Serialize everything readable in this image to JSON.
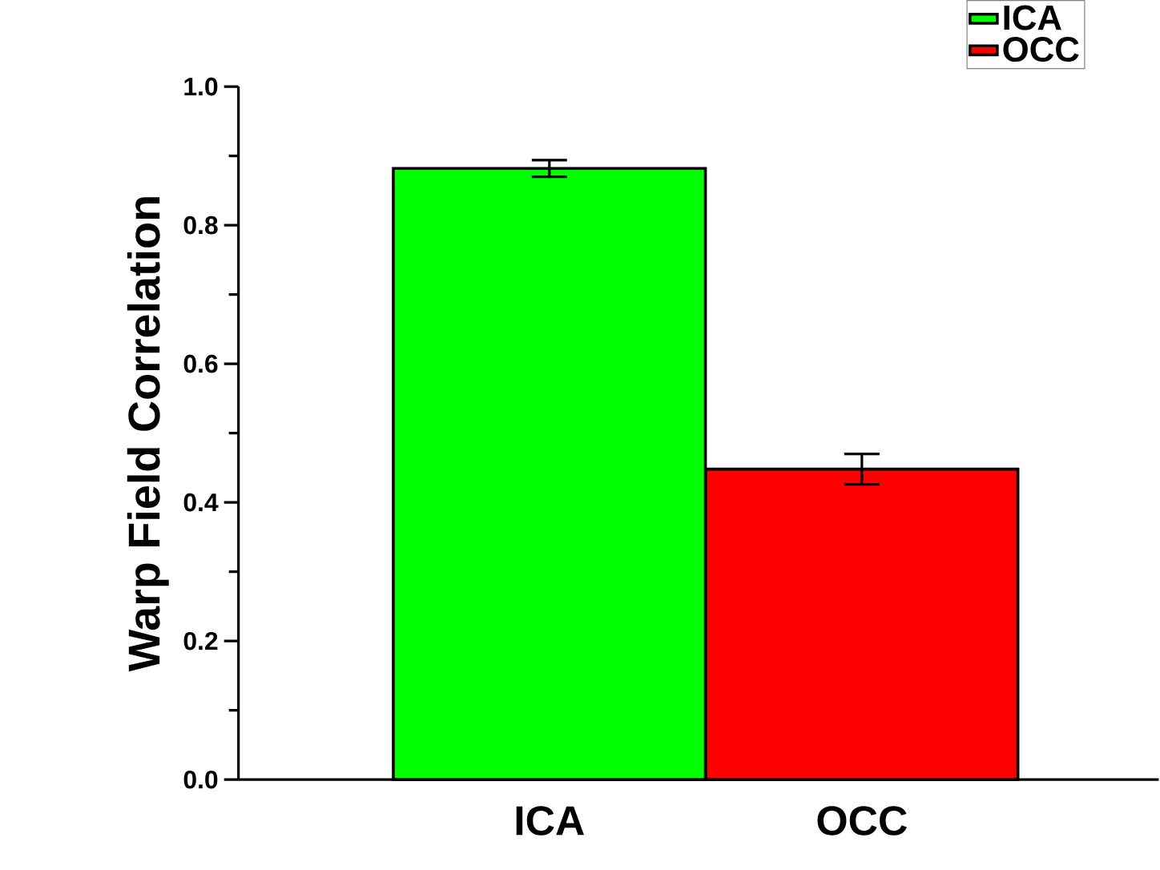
{
  "chart_data": {
    "type": "bar",
    "ylabel": "Warp Field Correlation",
    "categories": [
      "ICA",
      "OCC"
    ],
    "series": [
      {
        "name": "ICA",
        "color": "#00ff00",
        "values": [
          0.882,
          null
        ],
        "errors": [
          0.012,
          null
        ]
      },
      {
        "name": "OCC",
        "color": "#ff0000",
        "values": [
          null,
          0.448
        ],
        "errors": [
          null,
          0.022
        ]
      }
    ],
    "ylim": [
      0,
      1.0
    ],
    "yticks": [
      {
        "value": 0,
        "label": "0.0"
      },
      {
        "value": 0.1,
        "label": null
      },
      0.2,
      {
        "value": 0.3,
        "label": null
      },
      0.4,
      {
        "value": 0.5,
        "label": null
      },
      0.6,
      {
        "value": 0.7,
        "label": null
      },
      0.8,
      {
        "value": 0.9,
        "label": null
      },
      {
        "value": 1.0,
        "label": "1.0"
      }
    ],
    "legend": "top right",
    "grid": false
  }
}
